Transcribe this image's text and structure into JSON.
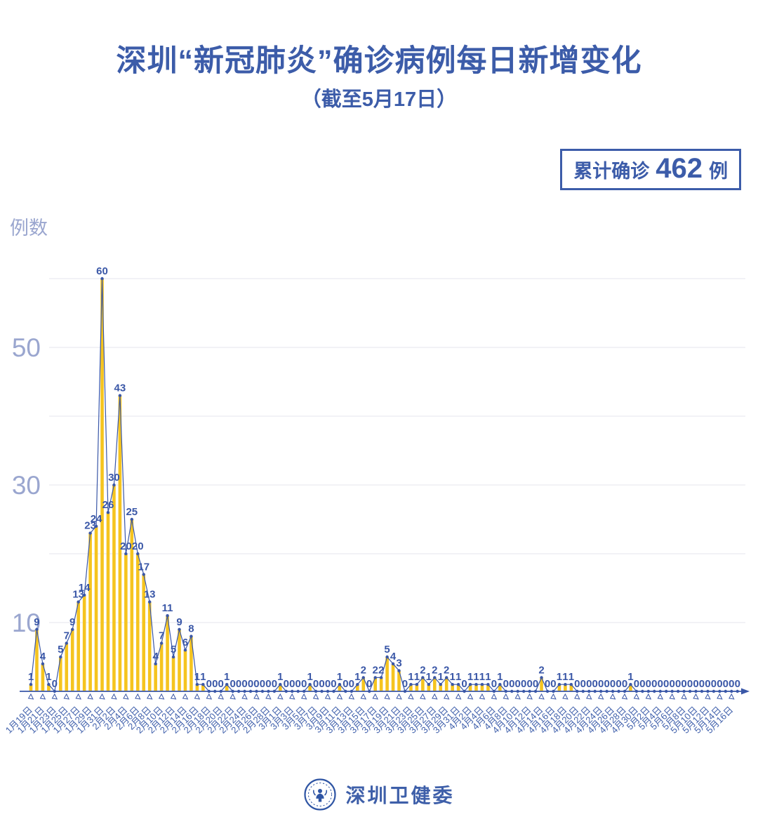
{
  "header": {
    "title": "深圳“新冠肺炎”确诊病例每日新增变化",
    "subtitle": "（截至5月17日）"
  },
  "badge": {
    "prefix": "累计确诊",
    "count": "462",
    "unit": "例"
  },
  "footer": {
    "org_name": "深圳卫健委",
    "logo_icon": "shenzhen-health-commission-seal"
  },
  "colors": {
    "title_blue": "#3C5CA9",
    "line_blue": "#3A57A7",
    "bar_yellow": "#F5C41F",
    "axis_label_blue": "#4161AC",
    "y_label_blue_gray": "#9AA6CF",
    "gridline": "#E5E6EE"
  },
  "chart_data": {
    "type": "bar",
    "line_overlay": true,
    "title": "深圳“新冠肺炎”确诊病例每日新增变化",
    "subtitle": "（截至5月17日）",
    "y_axis_title": "例数",
    "ylim": [
      0,
      63
    ],
    "y_ticks_labeled": [
      10,
      30,
      50
    ],
    "y_gridlines": [
      10,
      20,
      30,
      40,
      50,
      60
    ],
    "legend_position": "none",
    "grid": "horizontal",
    "x_tick_labels": [
      "1月19日",
      "1月21日",
      "1月23日",
      "1月25日",
      "1月27日",
      "1月29日",
      "1月31日",
      "2月2日",
      "2月4日",
      "2月6日",
      "2月8日",
      "2月10日",
      "2月12日",
      "2月14日",
      "2月16日",
      "2月18日",
      "2月20日",
      "2月22日",
      "2月24日",
      "2月26日",
      "2月28日",
      "3月1日",
      "3月3日",
      "3月5日",
      "3月7日",
      "3月9日",
      "3月11日",
      "3月13日",
      "3月15日",
      "3月17日",
      "3月19日",
      "3月21日",
      "3月23日",
      "3月25日",
      "3月27日",
      "3月29日",
      "3月31日",
      "4月2日",
      "4月4日",
      "4月6日",
      "4月8日",
      "4月10日",
      "4月12日",
      "4月14日",
      "4月16日",
      "4月18日",
      "4月20日",
      "4月22日",
      "4月24日",
      "4月26日",
      "4月28日",
      "4月30日",
      "5月2日",
      "5月4日",
      "5月6日",
      "5月8日",
      "5月10日",
      "5月12日",
      "5月14日",
      "5月16日"
    ],
    "x_label_every_n_points": 2,
    "values": [
      1,
      9,
      4,
      1,
      0,
      5,
      7,
      9,
      13,
      14,
      23,
      24,
      60,
      26,
      30,
      43,
      20,
      25,
      20,
      17,
      13,
      4,
      7,
      11,
      5,
      9,
      6,
      8,
      1,
      1,
      0,
      0,
      0,
      1,
      0,
      0,
      0,
      0,
      0,
      0,
      0,
      0,
      1,
      0,
      0,
      0,
      0,
      1,
      0,
      0,
      0,
      0,
      1,
      0,
      0,
      1,
      2,
      0,
      2,
      2,
      5,
      4,
      3,
      0,
      1,
      1,
      2,
      1,
      2,
      1,
      2,
      1,
      1,
      0,
      1,
      1,
      1,
      1,
      0,
      1,
      0,
      0,
      0,
      0,
      0,
      0,
      2,
      0,
      0,
      1,
      1,
      1,
      0,
      0,
      0,
      0,
      0,
      0,
      0,
      0,
      0,
      1,
      0,
      0,
      0,
      0,
      0,
      0,
      0,
      0,
      0,
      0,
      0,
      0,
      0,
      0,
      0,
      0,
      0,
      0
    ],
    "values_total": 462
  }
}
